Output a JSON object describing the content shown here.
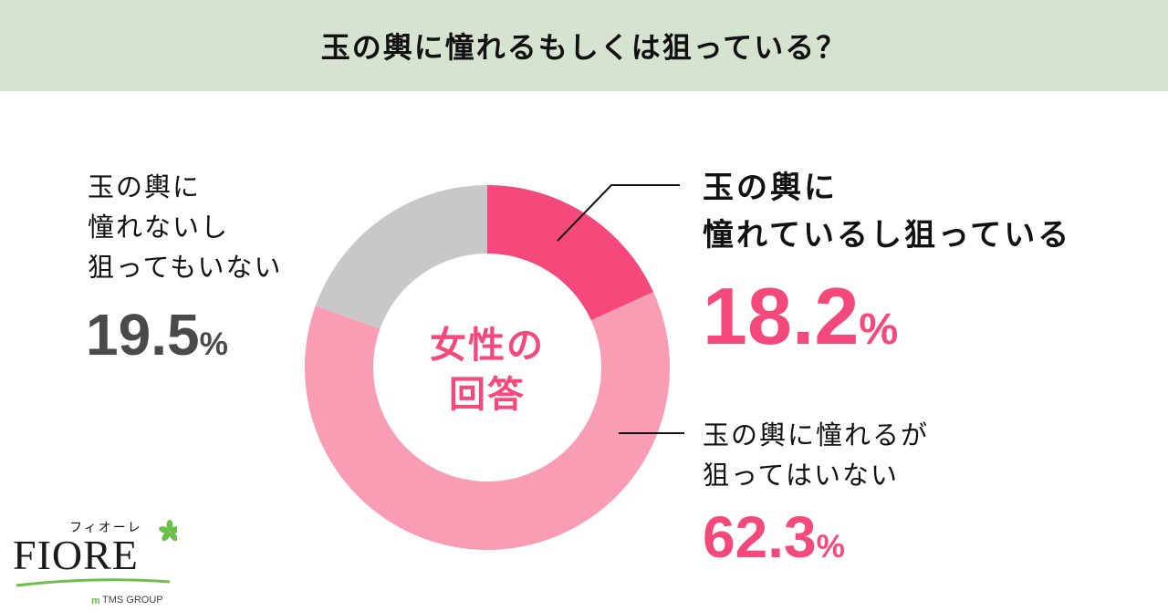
{
  "header": {
    "title": "玉の輿に憧れるもしくは狙っている？"
  },
  "center_label": {
    "line1": "女性の",
    "line2": "回答"
  },
  "segments": [
    {
      "label_lines": [
        "玉の輿に",
        "憧れているし狙っている"
      ],
      "value": "18.2",
      "unit": "%"
    },
    {
      "label_lines": [
        "玉の輿に憧れるが",
        "狙ってはいない"
      ],
      "value": "62.3",
      "unit": "%"
    },
    {
      "label_lines": [
        "玉の輿に",
        "憧れないし",
        "狙ってもいない"
      ],
      "value": "19.5",
      "unit": "%"
    }
  ],
  "logo": {
    "kana": "フィオーレ",
    "brand": "FIORE",
    "group": "TMS GROUP"
  },
  "colors": {
    "dark_pink": "#f4497a",
    "light_pink": "#f99db4",
    "gray": "#c8c8c8",
    "header_bg": "#d5e3d0"
  },
  "chart_data": {
    "type": "pie",
    "donut": true,
    "title": "玉の輿に憧れるもしくは狙っている？",
    "subtitle": "女性の回答",
    "categories": [
      "玉の輿に憧れているし狙っている",
      "玉の輿に憧れるが狙ってはいない",
      "玉の輿に憧れないし狙ってもいない"
    ],
    "values": [
      18.2,
      62.3,
      19.5
    ],
    "colors": [
      "#f4497a",
      "#f99db4",
      "#c8c8c8"
    ],
    "start_angle": "12 o'clock, clockwise"
  }
}
